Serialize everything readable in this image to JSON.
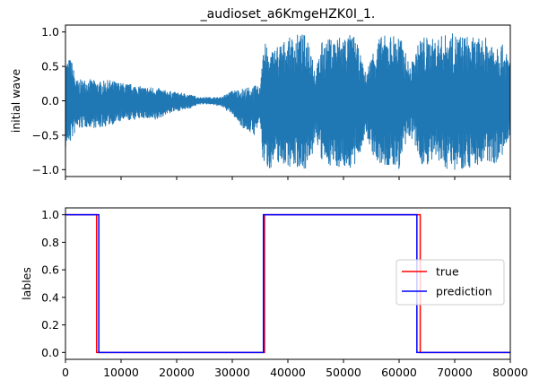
{
  "chart_data": [
    {
      "type": "line",
      "title": "_audioset_a6KmgeHZK0I_1.",
      "xlabel": "",
      "ylabel": "initial wave",
      "xlim": [
        0,
        80000
      ],
      "ylim": [
        -1.1,
        1.1
      ],
      "yticks": [
        -1.0,
        -0.5,
        0.0,
        0.5,
        1.0
      ],
      "ytick_labels": [
        "−1.0",
        "−0.5",
        "0.0",
        "0.5",
        "1.0"
      ],
      "xtick_labels_visible": false,
      "grid": false,
      "series": [
        {
          "color": "#1f77b4",
          "style": "waveform",
          "envelope": {
            "x": [
              0,
              1000,
              2000,
              4000,
              6000,
              8000,
              10000,
              12000,
              14000,
              16000,
              18000,
              20000,
              22000,
              24000,
              26000,
              28000,
              30000,
              32000,
              34000,
              35000,
              35500,
              36500,
              38000,
              40000,
              42000,
              44000,
              45000,
              46000,
              48000,
              50000,
              52000,
              54000,
              56000,
              58000,
              60000,
              62000,
              64000,
              66000,
              68000,
              70000,
              72000,
              74000,
              76000,
              78000,
              80000
            ],
            "upper": [
              0.6,
              0.62,
              0.3,
              0.32,
              0.28,
              0.3,
              0.26,
              0.24,
              0.2,
              0.2,
              0.15,
              0.12,
              0.1,
              0.05,
              0.05,
              0.05,
              0.15,
              0.18,
              0.22,
              0.2,
              0.95,
              0.7,
              0.82,
              0.9,
              0.98,
              0.95,
              0.4,
              0.85,
              0.92,
              0.98,
              0.95,
              0.4,
              0.92,
              0.96,
              0.98,
              0.5,
              0.96,
              0.9,
              0.96,
              0.98,
              0.95,
              0.9,
              0.92,
              0.9,
              0.6
            ],
            "lower": [
              -0.7,
              -0.6,
              -0.42,
              -0.38,
              -0.4,
              -0.35,
              -0.3,
              -0.28,
              -0.25,
              -0.3,
              -0.2,
              -0.15,
              -0.12,
              -0.05,
              -0.05,
              -0.08,
              -0.2,
              -0.4,
              -0.5,
              -0.3,
              -0.9,
              -1.0,
              -0.9,
              -0.95,
              -0.98,
              -1.0,
              -0.5,
              -0.9,
              -0.95,
              -0.98,
              -1.0,
              -0.5,
              -0.95,
              -0.98,
              -1.0,
              -0.5,
              -0.95,
              -0.9,
              -0.98,
              -1.0,
              -0.98,
              -0.95,
              -0.92,
              -0.9,
              -0.6
            ]
          }
        }
      ]
    },
    {
      "type": "line",
      "title": "",
      "xlabel": "",
      "ylabel": "lables",
      "xlim": [
        0,
        80000
      ],
      "ylim": [
        -0.05,
        1.05
      ],
      "xticks": [
        0,
        10000,
        20000,
        30000,
        40000,
        50000,
        60000,
        70000,
        80000
      ],
      "xtick_labels": [
        "0",
        "10000",
        "20000",
        "30000",
        "40000",
        "50000",
        "60000",
        "70000",
        "80000"
      ],
      "yticks": [
        0.0,
        0.2,
        0.4,
        0.6,
        0.8,
        1.0
      ],
      "ytick_labels": [
        "0.0",
        "0.2",
        "0.4",
        "0.6",
        "0.8",
        "1.0"
      ],
      "grid": false,
      "legend": {
        "position": "center-right"
      },
      "series": [
        {
          "name": "true",
          "color": "#ff0000",
          "x": [
            0,
            5600,
            5600,
            35800,
            35800,
            63800,
            63800,
            80000
          ],
          "y": [
            1,
            1,
            0,
            0,
            1,
            1,
            0,
            0
          ]
        },
        {
          "name": "prediction",
          "color": "#0000ff",
          "x": [
            0,
            6000,
            6000,
            35600,
            35600,
            63200,
            63200,
            80000
          ],
          "y": [
            1,
            1,
            0,
            0,
            1,
            1,
            0,
            0
          ]
        }
      ]
    }
  ]
}
